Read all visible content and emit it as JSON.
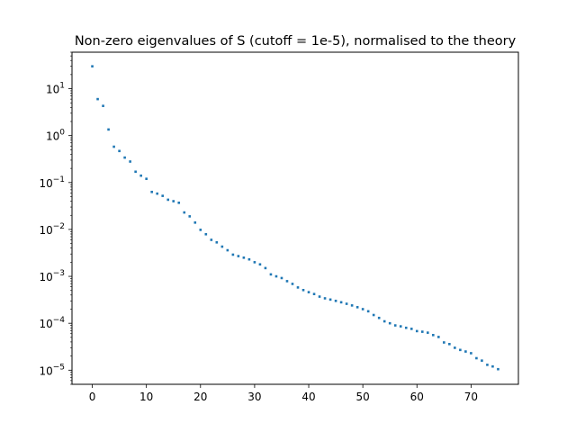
{
  "chart_data": {
    "type": "scatter",
    "title": "Non-zero eigenvalues of S (cutoff = 1e-5), normalised to the theory",
    "xlabel": "",
    "ylabel": "",
    "yscale": "log",
    "xlim": [
      -3.75,
      78.75
    ],
    "ylim": [
      5e-06,
      60
    ],
    "grid": false,
    "marker_color": "#1f77b4",
    "x_ticks": [
      {
        "value": 0,
        "label": "0"
      },
      {
        "value": 10,
        "label": "10"
      },
      {
        "value": 20,
        "label": "20"
      },
      {
        "value": 30,
        "label": "30"
      },
      {
        "value": 40,
        "label": "40"
      },
      {
        "value": 50,
        "label": "50"
      },
      {
        "value": 60,
        "label": "60"
      },
      {
        "value": 70,
        "label": "70"
      }
    ],
    "y_ticks": [
      {
        "value": 1e-05,
        "base": "10",
        "exp": "−5"
      },
      {
        "value": 0.0001,
        "base": "10",
        "exp": "−4"
      },
      {
        "value": 0.001,
        "base": "10",
        "exp": "−3"
      },
      {
        "value": 0.01,
        "base": "10",
        "exp": "−2"
      },
      {
        "value": 0.1,
        "base": "10",
        "exp": "−1"
      },
      {
        "value": 1,
        "base": "10",
        "exp": "0"
      },
      {
        "value": 10,
        "base": "10",
        "exp": "1"
      }
    ],
    "x": [
      0,
      1,
      2,
      3,
      4,
      5,
      6,
      7,
      8,
      9,
      10,
      11,
      12,
      13,
      14,
      15,
      16,
      17,
      18,
      19,
      20,
      21,
      22,
      23,
      24,
      25,
      26,
      27,
      28,
      29,
      30,
      31,
      32,
      33,
      34,
      35,
      36,
      37,
      38,
      39,
      40,
      41,
      42,
      43,
      44,
      45,
      46,
      47,
      48,
      49,
      50,
      51,
      52,
      53,
      54,
      55,
      56,
      57,
      58,
      59,
      60,
      61,
      62,
      63,
      64,
      65,
      66,
      67,
      68,
      69,
      70,
      71,
      72,
      73,
      74,
      75
    ],
    "values": [
      30,
      6.0,
      4.3,
      1.35,
      0.58,
      0.47,
      0.34,
      0.28,
      0.17,
      0.14,
      0.12,
      0.063,
      0.058,
      0.052,
      0.043,
      0.04,
      0.037,
      0.023,
      0.019,
      0.014,
      0.0098,
      0.0079,
      0.006,
      0.0053,
      0.0043,
      0.0036,
      0.0029,
      0.0027,
      0.0025,
      0.0023,
      0.002,
      0.0018,
      0.0015,
      0.0011,
      0.001,
      0.00092,
      0.00079,
      0.00069,
      0.00058,
      0.00051,
      0.00046,
      0.00042,
      0.00037,
      0.00034,
      0.00032,
      0.0003,
      0.00028,
      0.00026,
      0.00024,
      0.00022,
      0.0002,
      0.00018,
      0.00015,
      0.00013,
      0.00011,
      0.0001,
      9e-05,
      8.6e-05,
      8e-05,
      7.6e-05,
      6.8e-05,
      6.6e-05,
      6.3e-05,
      5.6e-05,
      5.1e-05,
      3.9e-05,
      3.6e-05,
      3e-05,
      2.7e-05,
      2.5e-05,
      2.3e-05,
      1.8e-05,
      1.6e-05,
      1.3e-05,
      1.2e-05,
      1.05e-05
    ]
  }
}
